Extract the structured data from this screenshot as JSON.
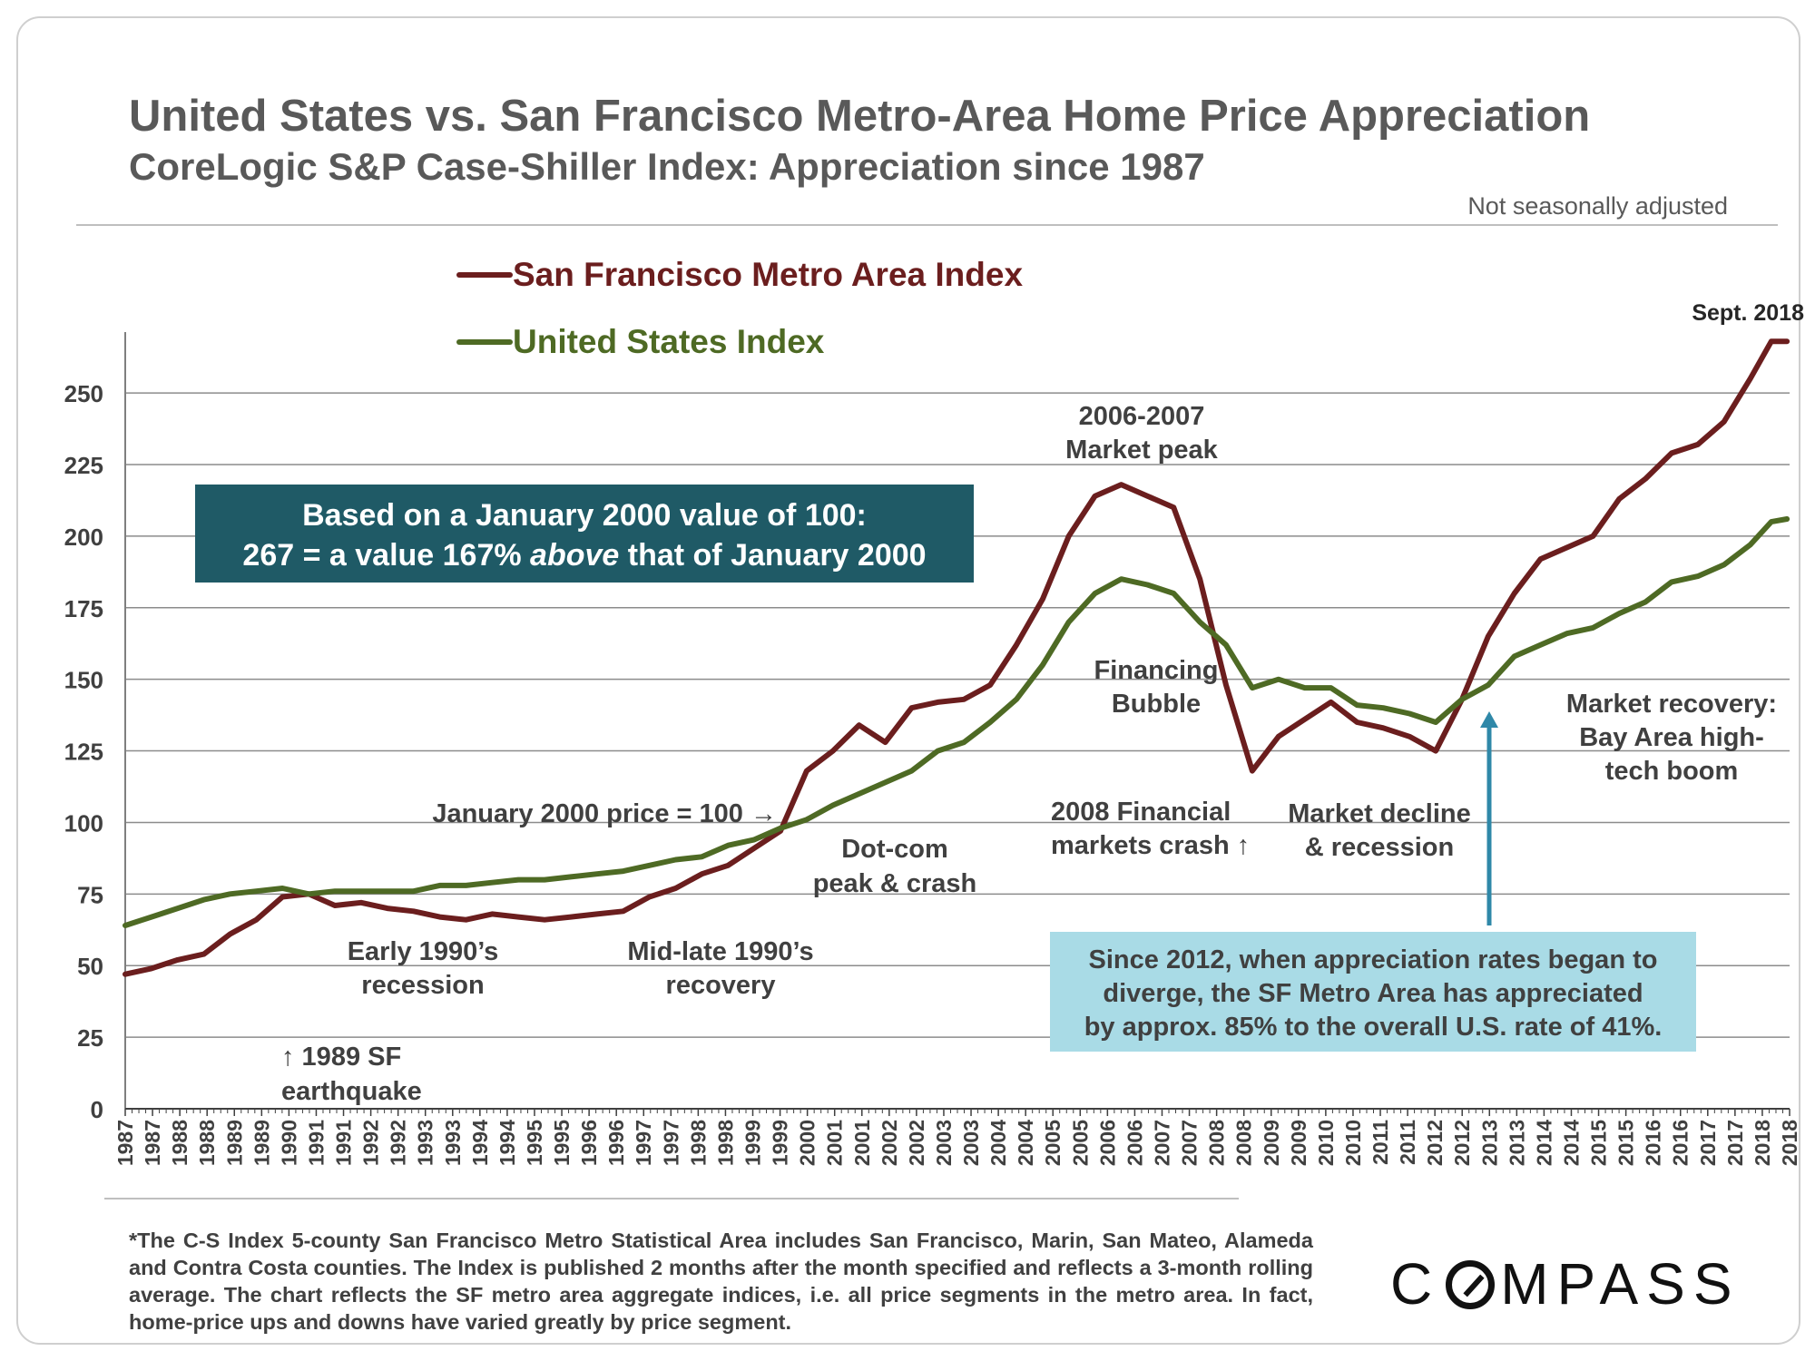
{
  "header": {
    "title": "United States vs. San Francisco Metro-Area Home Price Appreciation",
    "subtitle": "CoreLogic S&P Case-Shiller Index: Appreciation since 1987",
    "note": "Not seasonally adjusted"
  },
  "colors": {
    "sf": "#6b1e1e",
    "us": "#4e6a24",
    "text": "#404040",
    "grid": "#8c8c8c",
    "teal_box": "#1f5a66",
    "light_box": "#a9dbe6",
    "arrow": "#2f88a8"
  },
  "chart_data": {
    "type": "line",
    "ylim": [
      0,
      270
    ],
    "yticks": [
      0,
      25,
      50,
      75,
      100,
      125,
      150,
      175,
      200,
      225,
      250
    ],
    "xlim": [
      1987.0,
      2018.75
    ],
    "x_tick_labels": [
      "1987",
      "1987",
      "1988",
      "1988",
      "1989",
      "1989",
      "1990",
      "1991",
      "1991",
      "1992",
      "1992",
      "1993",
      "1993",
      "1994",
      "1994",
      "1995",
      "1995",
      "1996",
      "1996",
      "1997",
      "1997",
      "1998",
      "1998",
      "1999",
      "1999",
      "2000",
      "2001",
      "2001",
      "2002",
      "2002",
      "2003",
      "2003",
      "2004",
      "2004",
      "2005",
      "2005",
      "2006",
      "2006",
      "2007",
      "2007",
      "2008",
      "2008",
      "2009",
      "2009",
      "2010",
      "2010",
      "2011",
      "2011",
      "2012",
      "2012",
      "2013",
      "2013",
      "2014",
      "2014",
      "2015",
      "2015",
      "2016",
      "2016",
      "2017",
      "2017",
      "2018",
      "2018"
    ],
    "legend": [
      "San Francisco Metro Area Index",
      "United States Index"
    ],
    "legend_position": "top-left",
    "series": [
      {
        "name": "San Francisco Metro Area Index",
        "x": [
          1987.0,
          1987.5,
          1988.0,
          1988.5,
          1989.0,
          1989.5,
          1990.0,
          1990.5,
          1991.0,
          1991.5,
          1992.0,
          1992.5,
          1993.0,
          1993.5,
          1994.0,
          1994.5,
          1995.0,
          1995.5,
          1996.0,
          1996.5,
          1997.0,
          1997.5,
          1998.0,
          1998.5,
          1999.0,
          1999.5,
          2000.0,
          2000.5,
          2001.0,
          2001.5,
          2002.0,
          2002.5,
          2003.0,
          2003.5,
          2004.0,
          2004.5,
          2005.0,
          2005.5,
          2006.0,
          2006.5,
          2007.0,
          2007.5,
          2008.0,
          2008.5,
          2009.0,
          2009.5,
          2010.0,
          2010.5,
          2011.0,
          2011.5,
          2012.0,
          2012.5,
          2013.0,
          2013.5,
          2014.0,
          2014.5,
          2015.0,
          2015.5,
          2016.0,
          2016.5,
          2017.0,
          2017.5,
          2018.0,
          2018.4,
          2018.7
        ],
        "values": [
          47,
          49,
          52,
          54,
          61,
          66,
          74,
          75,
          71,
          72,
          70,
          69,
          67,
          66,
          68,
          67,
          66,
          67,
          68,
          69,
          74,
          77,
          82,
          85,
          91,
          97,
          118,
          125,
          134,
          128,
          140,
          142,
          143,
          148,
          162,
          178,
          200,
          214,
          218,
          214,
          210,
          185,
          148,
          118,
          130,
          136,
          142,
          135,
          133,
          130,
          125,
          143,
          165,
          180,
          192,
          196,
          200,
          213,
          220,
          229,
          232,
          240,
          255,
          268,
          268
        ]
      },
      {
        "name": "United States Index",
        "x": [
          1987.0,
          1987.5,
          1988.0,
          1988.5,
          1989.0,
          1989.5,
          1990.0,
          1990.5,
          1991.0,
          1991.5,
          1992.0,
          1992.5,
          1993.0,
          1993.5,
          1994.0,
          1994.5,
          1995.0,
          1995.5,
          1996.0,
          1996.5,
          1997.0,
          1997.5,
          1998.0,
          1998.5,
          1999.0,
          1999.5,
          2000.0,
          2000.5,
          2001.0,
          2001.5,
          2002.0,
          2002.5,
          2003.0,
          2003.5,
          2004.0,
          2004.5,
          2005.0,
          2005.5,
          2006.0,
          2006.5,
          2007.0,
          2007.5,
          2008.0,
          2008.5,
          2009.0,
          2009.5,
          2010.0,
          2010.5,
          2011.0,
          2011.5,
          2012.0,
          2012.5,
          2013.0,
          2013.5,
          2014.0,
          2014.5,
          2015.0,
          2015.5,
          2016.0,
          2016.5,
          2017.0,
          2017.5,
          2018.0,
          2018.4,
          2018.7
        ],
        "values": [
          64,
          67,
          70,
          73,
          75,
          76,
          77,
          75,
          76,
          76,
          76,
          76,
          78,
          78,
          79,
          80,
          80,
          81,
          82,
          83,
          85,
          87,
          88,
          92,
          94,
          98,
          101,
          106,
          110,
          114,
          118,
          125,
          128,
          135,
          143,
          155,
          170,
          180,
          185,
          183,
          180,
          170,
          162,
          147,
          150,
          147,
          147,
          141,
          140,
          138,
          135,
          143,
          148,
          158,
          162,
          166,
          168,
          173,
          177,
          184,
          186,
          190,
          197,
          205,
          206
        ]
      }
    ],
    "annotations": [
      {
        "id": "sept2018",
        "text": "Sept. 2018"
      },
      {
        "id": "peak",
        "text": "2006-2007\nMarket peak"
      },
      {
        "id": "bubble",
        "text": "Financing\nBubble"
      },
      {
        "id": "jan2000",
        "text": "January 2000 price = 100 →"
      },
      {
        "id": "dotcom",
        "text": "Dot-com\npeak & crash"
      },
      {
        "id": "crash2008",
        "text": "2008 Financial\nmarkets crash ↑"
      },
      {
        "id": "decline",
        "text": "Market decline\n& recession"
      },
      {
        "id": "recovery",
        "text": "Market recovery:\nBay Area high-\ntech boom"
      },
      {
        "id": "early90",
        "text": "Early 1990’s\nrecession"
      },
      {
        "id": "mid90",
        "text": "Mid-late 1990’s\nrecovery"
      },
      {
        "id": "quake",
        "text": "↑ 1989 SF\nearthquake"
      }
    ],
    "info_box": {
      "line1": "Based on a January 2000 value of 100:",
      "line2_before": "267 = a value 167% ",
      "line2_italic": "above",
      "line2_after": " that of January 2000"
    },
    "since_box": {
      "lines": [
        "Since 2012, when appreciation rates began to",
        "diverge, the SF Metro Area has appreciated",
        "by approx. 85% to the overall U.S. rate of 41%."
      ]
    }
  },
  "footer": {
    "footnote": "*The C-S Index 5-county San Francisco Metro Statistical Area includes San Francisco, Marin, San Mateo, Alameda and Contra Costa counties. The Index is published 2 months after the month specified and reflects a 3-month rolling average.  The chart reflects the SF metro area aggregate indices, i.e. all price segments in the metro area. In fact, home-price ups and downs have varied greatly by price segment.",
    "logo_pre": "C",
    "logo_post": "MPASS"
  }
}
